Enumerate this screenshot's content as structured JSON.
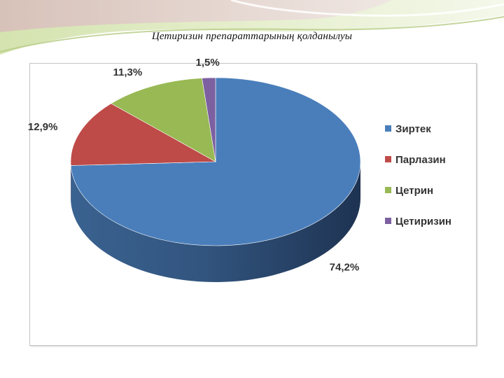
{
  "slide": {
    "title": "Цетиризин препараттарының қолданылуы"
  },
  "chart_data": {
    "type": "pie",
    "variant": "3d",
    "title": "",
    "legend_position": "right",
    "series": [
      {
        "labels": [
          "Зиртек",
          "Парлазин",
          "Цетрин",
          "Цетиризин"
        ],
        "values": [
          74.2,
          12.9,
          11.3,
          1.5
        ],
        "data_labels": [
          "74,2%",
          "12,9%",
          "11,3%",
          "1,5%"
        ]
      }
    ],
    "colors": [
      "#4a7ebb",
      "#be4b48",
      "#98b954",
      "#7d60a0"
    ]
  }
}
